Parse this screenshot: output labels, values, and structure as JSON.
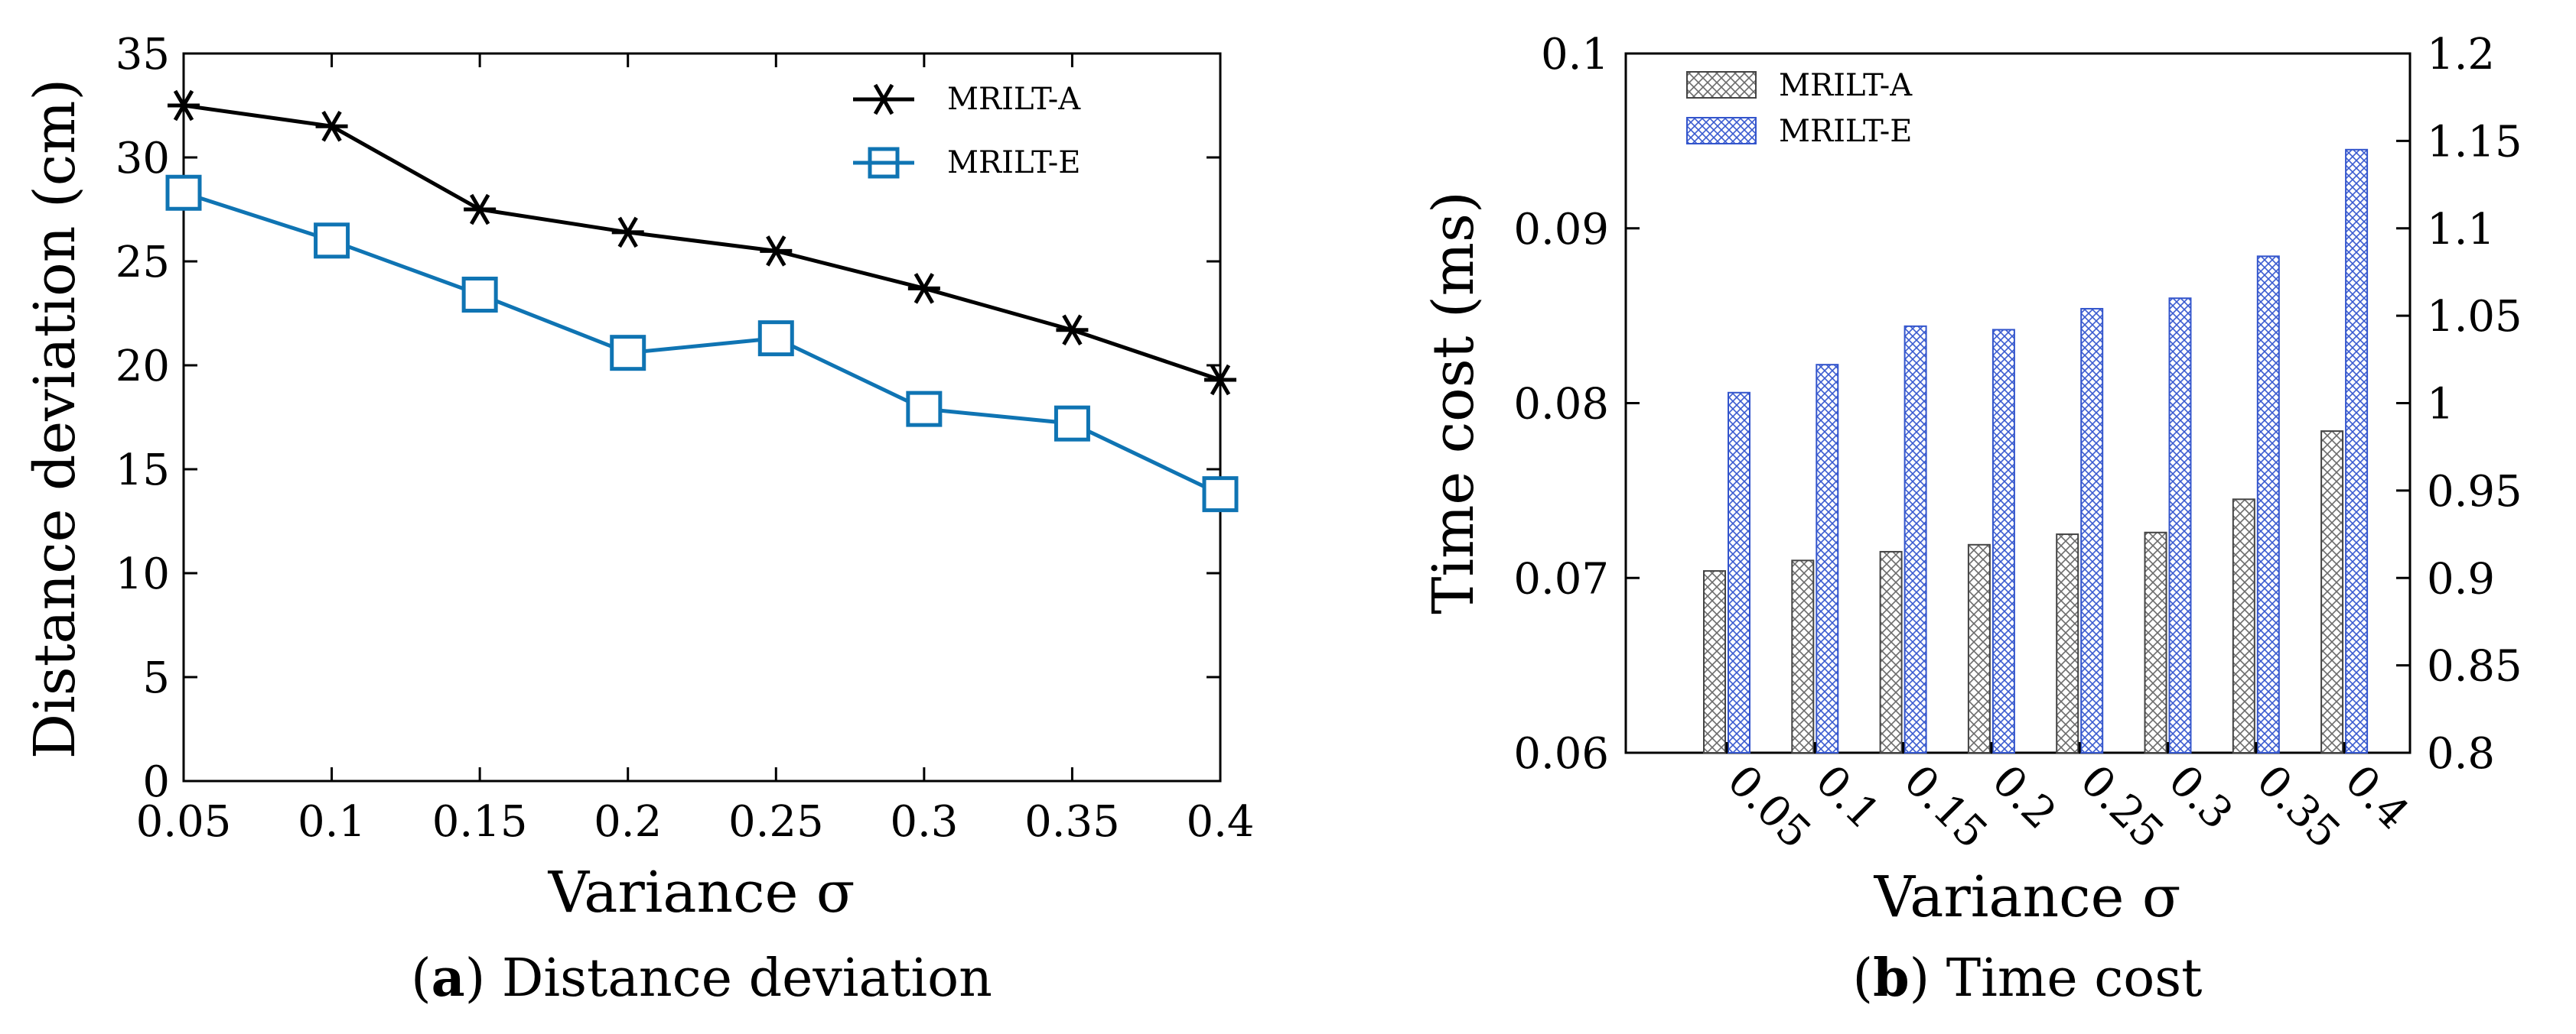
{
  "chart_data": [
    {
      "type": "line",
      "caption_label": "a",
      "caption_text": " Distance deviation",
      "title": "",
      "xlabel": "Variance σ",
      "ylabel": "Distance deviation (cm)",
      "categories": [
        "0.05",
        "0.1",
        "0.15",
        "0.2",
        "0.25",
        "0.3",
        "0.35",
        "0.4"
      ],
      "ylim": [
        0,
        35
      ],
      "yticks": [
        "0",
        "5",
        "10",
        "15",
        "20",
        "25",
        "30",
        "35"
      ],
      "grid": false,
      "legend_position": "top-right",
      "series": [
        {
          "name": "MRILT-A",
          "marker": "asterisk",
          "color": "#000000",
          "values": [
            32.5,
            31.5,
            27.5,
            26.4,
            25.5,
            23.7,
            21.7,
            19.3
          ]
        },
        {
          "name": "MRILT-E",
          "marker": "square",
          "color": "#0f74b3",
          "values": [
            28.3,
            26.0,
            23.4,
            20.6,
            21.3,
            17.9,
            17.2,
            13.8
          ]
        }
      ]
    },
    {
      "type": "bar",
      "caption_label": "b",
      "caption_text": " Time cost",
      "title": "",
      "xlabel": "Variance σ",
      "ylabel": "Time cost (ms)",
      "categories": [
        "0.05",
        "0.1",
        "0.15",
        "0.2",
        "0.25",
        "0.3",
        "0.35",
        "0.4"
      ],
      "ylim": [
        0.06,
        0.1
      ],
      "yticks": [
        "0.06",
        "0.07",
        "0.08",
        "0.09",
        "0.1"
      ],
      "y2lim": [
        0.8,
        1.2
      ],
      "y2ticks": [
        "0.8",
        "0.85",
        "0.9",
        "0.95",
        "1",
        "1.05",
        "1.1",
        "1.15",
        "1.2"
      ],
      "grid": false,
      "legend_position": "top-left",
      "series": [
        {
          "name": "MRILT-A",
          "axis": "left",
          "color": "#555555",
          "values": [
            0.0704,
            0.071,
            0.0715,
            0.0719,
            0.0725,
            0.0726,
            0.0745,
            0.0784
          ]
        },
        {
          "name": "MRILT-E",
          "axis": "right",
          "color": "#3355cc",
          "values": [
            1.006,
            1.022,
            1.044,
            1.042,
            1.054,
            1.06,
            1.084,
            1.145
          ]
        }
      ]
    }
  ]
}
